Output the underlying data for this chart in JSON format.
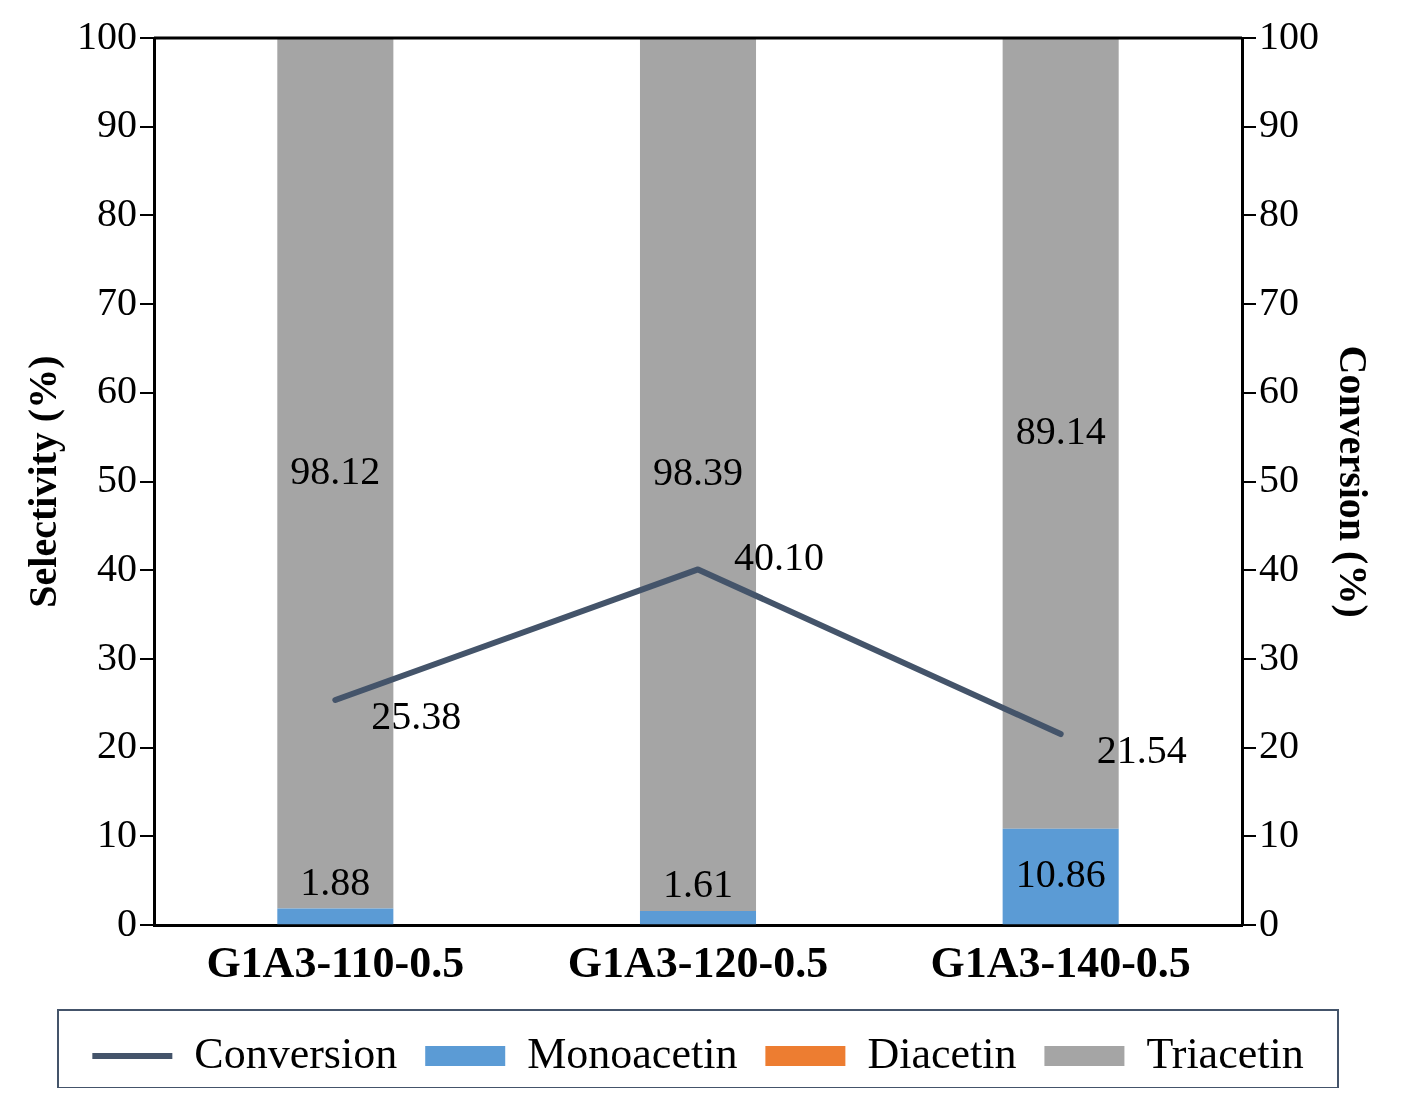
{
  "chart_data": {
    "type": "bar",
    "stacked": true,
    "categories": [
      "G1A3-110-0.5",
      "G1A3-120-0.5",
      "G1A3-140-0.5"
    ],
    "ylabel": "Selectivity (%)",
    "y2label": "Conversion (%)",
    "ylim": [
      0,
      100
    ],
    "yticks": [
      0,
      10,
      20,
      30,
      40,
      50,
      60,
      70,
      80,
      90,
      100
    ],
    "y2lim": [
      0,
      100
    ],
    "y2ticks": [
      0,
      10,
      20,
      30,
      40,
      50,
      60,
      70,
      80,
      90,
      100
    ],
    "grid": false,
    "legend": "bottom",
    "marker": "none",
    "line_style": "solid",
    "series": [
      {
        "name": "Monoacetin",
        "color": "#5b9bd5",
        "values": [
          1.88,
          1.61,
          10.86
        ],
        "value_labels": [
          "1.88",
          "1.61",
          "10.86"
        ]
      },
      {
        "name": "Diacetin",
        "color": "#ed7d31",
        "values": [
          0,
          0,
          0
        ],
        "value_labels": [
          null,
          null,
          null
        ]
      },
      {
        "name": "Triacetin",
        "color": "#a5a5a5",
        "values": [
          98.12,
          98.39,
          89.14
        ],
        "value_labels": [
          "98.12",
          "98.39",
          "89.14"
        ]
      },
      {
        "name": "Conversion",
        "type": "line",
        "axis": "y2",
        "color": "#44546a",
        "values": [
          25.38,
          40.1,
          21.54
        ],
        "value_labels": [
          "25.38",
          "40.10",
          "21.54"
        ]
      }
    ]
  }
}
